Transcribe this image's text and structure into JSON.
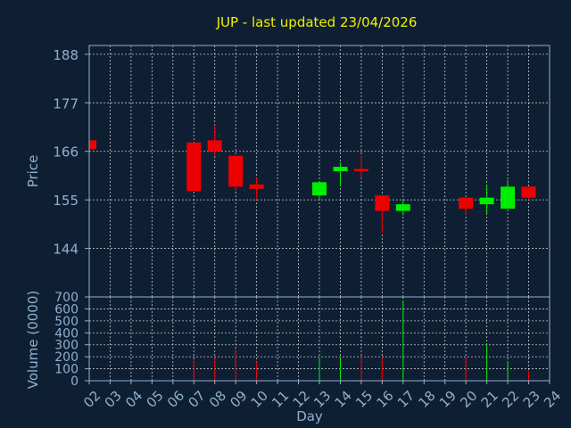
{
  "chart_data": {
    "title": "JUP - last updated 23/04/2026",
    "type": "candlestick",
    "xlabel": "Day",
    "days": [
      "02",
      "03",
      "04",
      "05",
      "06",
      "07",
      "08",
      "09",
      "10",
      "11",
      "12",
      "13",
      "14",
      "15",
      "16",
      "17",
      "18",
      "19",
      "20",
      "21",
      "22",
      "23",
      "24"
    ],
    "price_panel": {
      "ylabel": "Price",
      "ylim": [
        133,
        190
      ],
      "yticks": [
        144,
        155,
        166,
        177,
        188
      ],
      "candles": [
        {
          "day": "02",
          "open": 168.5,
          "high": 168.5,
          "low": 166.5,
          "close": 166.5,
          "direction": "down"
        },
        {
          "day": "07",
          "open": 168.0,
          "high": 168.0,
          "low": 157.0,
          "close": 157.0,
          "direction": "down"
        },
        {
          "day": "08",
          "open": 168.5,
          "high": 172.0,
          "low": 165.0,
          "close": 166.0,
          "direction": "down"
        },
        {
          "day": "09",
          "open": 165.0,
          "high": 165.0,
          "low": 157.0,
          "close": 158.0,
          "direction": "down"
        },
        {
          "day": "10",
          "open": 158.5,
          "high": 160.0,
          "low": 155.0,
          "close": 157.5,
          "direction": "down"
        },
        {
          "day": "13",
          "open": 156.0,
          "high": 159.0,
          "low": 155.0,
          "close": 159.0,
          "direction": "up"
        },
        {
          "day": "14",
          "open": 161.5,
          "high": 163.5,
          "low": 158.0,
          "close": 162.5,
          "direction": "up"
        },
        {
          "day": "15",
          "open": 162.0,
          "high": 165.0,
          "low": 160.0,
          "close": 161.5,
          "direction": "down"
        },
        {
          "day": "16",
          "open": 156.0,
          "high": 156.0,
          "low": 147.5,
          "close": 152.5,
          "direction": "down"
        },
        {
          "day": "17",
          "open": 152.5,
          "high": 155.0,
          "low": 151.5,
          "close": 154.0,
          "direction": "up"
        },
        {
          "day": "20",
          "open": 155.5,
          "high": 155.5,
          "low": 151.5,
          "close": 153.0,
          "direction": "down"
        },
        {
          "day": "21",
          "open": 154.0,
          "high": 158.5,
          "low": 152.0,
          "close": 155.5,
          "direction": "up"
        },
        {
          "day": "22",
          "open": 153.0,
          "high": 159.5,
          "low": 153.0,
          "close": 158.0,
          "direction": "up"
        },
        {
          "day": "23",
          "open": 158.0,
          "high": 158.0,
          "low": 155.0,
          "close": 155.5,
          "direction": "down"
        }
      ]
    },
    "volume_panel": {
      "ylabel": "Volume (0000)",
      "ylim": [
        0,
        700
      ],
      "yticks": [
        0,
        100,
        200,
        300,
        400,
        500,
        600,
        700
      ],
      "bars": [
        {
          "day": "07",
          "value": 170,
          "direction": "down"
        },
        {
          "day": "08",
          "value": 190,
          "direction": "down"
        },
        {
          "day": "09",
          "value": 260,
          "direction": "down"
        },
        {
          "day": "10",
          "value": 160,
          "direction": "down"
        },
        {
          "day": "13",
          "value": 195,
          "direction": "up"
        },
        {
          "day": "14",
          "value": 190,
          "direction": "up"
        },
        {
          "day": "15",
          "value": 200,
          "direction": "down"
        },
        {
          "day": "16",
          "value": 195,
          "direction": "down"
        },
        {
          "day": "17",
          "value": 670,
          "direction": "up"
        },
        {
          "day": "20",
          "value": 200,
          "direction": "down"
        },
        {
          "day": "21",
          "value": 310,
          "direction": "up"
        },
        {
          "day": "22",
          "value": 160,
          "direction": "up"
        },
        {
          "day": "23",
          "value": 80,
          "direction": "down"
        }
      ]
    },
    "grid": true,
    "colors": {
      "background": "#0f1f33",
      "up": "#00ee00",
      "down": "#ee0000",
      "title": "#f0f000",
      "tick_text": "#8fb0cf",
      "frame": "#8fb0cf",
      "grid": "#ffffff"
    }
  }
}
